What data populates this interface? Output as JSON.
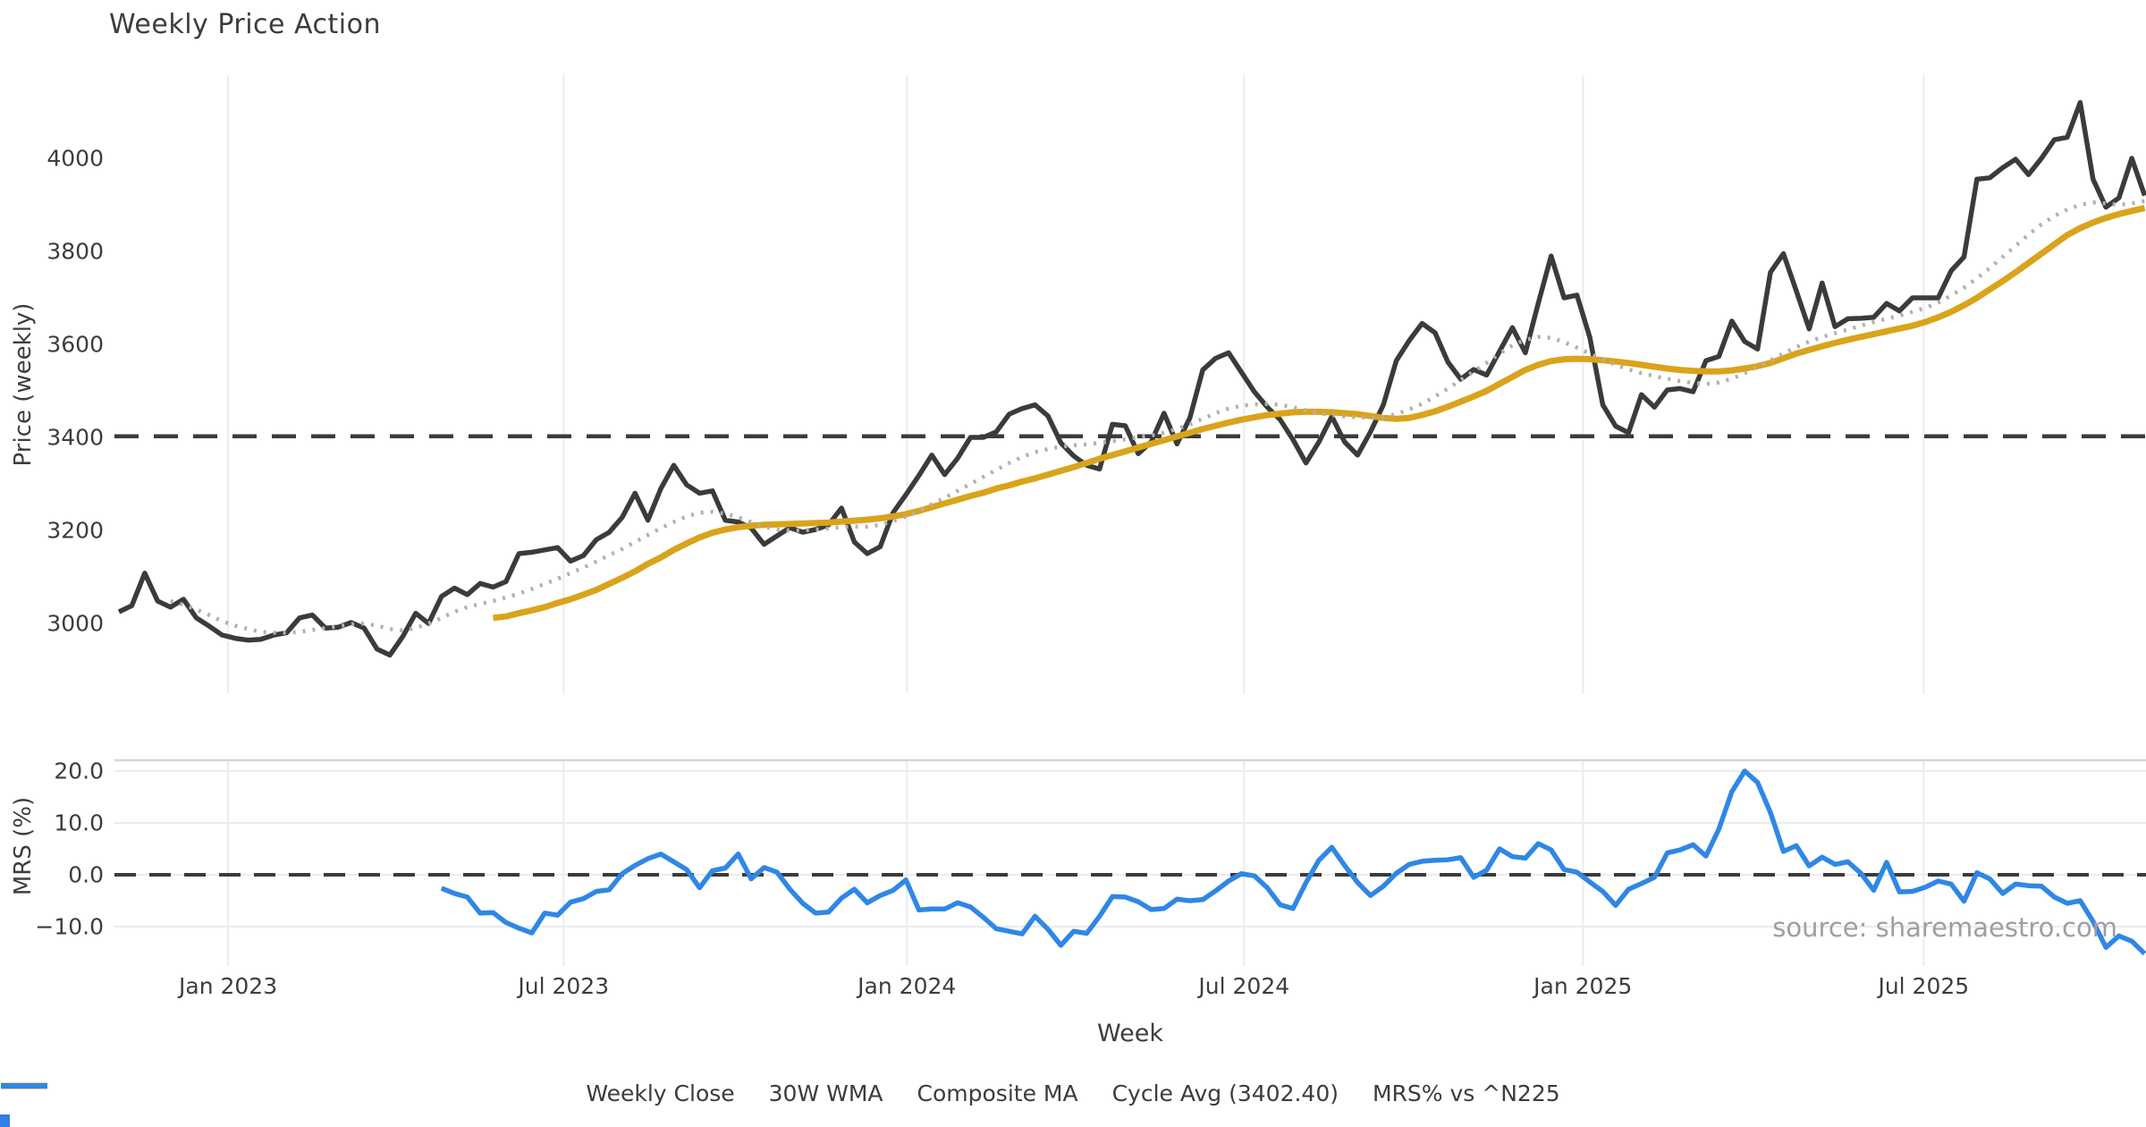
{
  "title": "Weekly Price Action",
  "source": "source: sharemaestro.com",
  "colors": {
    "weekly_close": "#3b3b3b",
    "wma_30w": "#d9a41b",
    "composite_ma": "#b0b0b0",
    "cycle_avg": "#3b3b3b",
    "mrs": "#2f87e5",
    "gridline": "#ebebf1",
    "panel_border": "#d5d5da",
    "tick_text": "#3d3d3d",
    "source_text": "#9e9ea4",
    "corner_artifact": "#2f7fe8"
  },
  "price_panel": {
    "y_label": "Price (weekly)",
    "y_ticks": [
      "3000",
      "3200",
      "3400",
      "3600",
      "3800",
      "4000"
    ],
    "cycle_avg_value": 3402.4
  },
  "mrs_panel": {
    "y_label": "MRS (%)",
    "y_ticks": [
      "20.0",
      "10.0",
      "0.0",
      "−10.0"
    ],
    "zero_line": 0
  },
  "x_axis": {
    "label": "Week",
    "ticks": [
      "Jan 2023",
      "Jul 2023",
      "Jan 2024",
      "Jul 2024",
      "Jan 2025",
      "Jul 2025"
    ],
    "tick_weeks": [
      8.46,
      34.46,
      61.07,
      87.2,
      113.46,
      139.87
    ]
  },
  "legend": [
    {
      "label": "Weekly Close",
      "color": "#3b3b3b",
      "style": "solid",
      "width": 6
    },
    {
      "label": "30W WMA",
      "color": "#d9a41b",
      "style": "solid",
      "width": 7
    },
    {
      "label": "Composite MA",
      "color": "#b0b0b0",
      "style": "dotted",
      "width": 4.5
    },
    {
      "label": "Cycle Avg (3402.40)",
      "color": "#3b3b3b",
      "style": "dashed",
      "width": 4.5
    },
    {
      "label": "MRS% vs ^N225",
      "color": "#2f87e5",
      "style": "solid",
      "width": 6
    }
  ],
  "chart_data": [
    {
      "type": "line",
      "panel": "price",
      "title": "Weekly Price Action",
      "xlabel": "Week",
      "ylabel": "Price (weekly)",
      "x_unit": "weekly samples (week index 0 ≈ early Nov 2022)",
      "x_tick_labels": [
        "Jan 2023",
        "Jul 2023",
        "Jan 2024",
        "Jul 2024",
        "Jan 2025",
        "Jul 2025"
      ],
      "x_tick_weeks": [
        8.46,
        34.46,
        61.07,
        87.2,
        113.46,
        139.87
      ],
      "ylim": [
        2850,
        4180
      ],
      "grid": "vertical only",
      "legend_position": "bottom center",
      "reference_line": {
        "name": "Cycle Avg",
        "value": 3402.4,
        "style": "dashed",
        "color": "#3b3b3b"
      },
      "series": [
        {
          "name": "Weekly Close",
          "color": "#3b3b3b",
          "style": "solid",
          "start_week": 0,
          "values": [
            3025,
            3038,
            3108,
            3048,
            3035,
            3052,
            3012,
            2994,
            2975,
            2968,
            2964,
            2966,
            2975,
            2980,
            3012,
            3018,
            2990,
            2992,
            3002,
            2990,
            2945,
            2932,
            2972,
            3022,
            3000,
            3058,
            3076,
            3062,
            3086,
            3078,
            3090,
            3150,
            3153,
            3158,
            3163,
            3134,
            3146,
            3180,
            3196,
            3228,
            3280,
            3222,
            3290,
            3340,
            3298,
            3280,
            3285,
            3222,
            3218,
            3205,
            3170,
            3188,
            3206,
            3196,
            3202,
            3212,
            3248,
            3175,
            3150,
            3165,
            3238,
            3277,
            3318,
            3362,
            3320,
            3355,
            3400,
            3400,
            3412,
            3450,
            3462,
            3470,
            3446,
            3388,
            3360,
            3340,
            3332,
            3428,
            3425,
            3365,
            3390,
            3452,
            3386,
            3442,
            3545,
            3570,
            3582,
            3540,
            3498,
            3465,
            3438,
            3395,
            3345,
            3390,
            3445,
            3390,
            3362,
            3412,
            3470,
            3565,
            3608,
            3645,
            3625,
            3562,
            3525,
            3546,
            3534,
            3585,
            3636,
            3582,
            3688,
            3790,
            3700,
            3706,
            3615,
            3470,
            3424,
            3410,
            3492,
            3465,
            3502,
            3505,
            3498,
            3565,
            3574,
            3650,
            3606,
            3590,
            3755,
            3795,
            3715,
            3633,
            3732,
            3638,
            3655,
            3656,
            3658,
            3688,
            3672,
            3700,
            3700,
            3700,
            3758,
            3788,
            3955,
            3958,
            3980,
            3998,
            3965,
            4000,
            4040,
            4045,
            4120,
            3955,
            3895,
            3915,
            4000,
            3920
          ]
        },
        {
          "name": "30W WMA",
          "color": "#d9a41b",
          "style": "solid",
          "start_week": 29,
          "values": [
            3012,
            3015,
            3022,
            3028,
            3035,
            3044,
            3052,
            3062,
            3072,
            3085,
            3098,
            3112,
            3128,
            3142,
            3158,
            3172,
            3185,
            3195,
            3202,
            3207,
            3210,
            3212,
            3213,
            3214,
            3215,
            3216,
            3217,
            3219,
            3221,
            3223,
            3226,
            3230,
            3235,
            3242,
            3250,
            3258,
            3266,
            3274,
            3281,
            3290,
            3297,
            3305,
            3312,
            3320,
            3328,
            3336,
            3345,
            3354,
            3362,
            3370,
            3378,
            3386,
            3394,
            3402,
            3410,
            3418,
            3425,
            3432,
            3438,
            3443,
            3448,
            3451,
            3454,
            3455,
            3455,
            3454,
            3452,
            3450,
            3446,
            3442,
            3440,
            3442,
            3448,
            3456,
            3466,
            3477,
            3488,
            3500,
            3515,
            3530,
            3545,
            3556,
            3564,
            3568,
            3569,
            3568,
            3566,
            3563,
            3560,
            3556,
            3552,
            3548,
            3545,
            3543,
            3542,
            3542,
            3544,
            3548,
            3553,
            3560,
            3570,
            3580,
            3588,
            3596,
            3603,
            3610,
            3616,
            3622,
            3628,
            3634,
            3640,
            3648,
            3658,
            3670,
            3684,
            3700,
            3718,
            3736,
            3755,
            3775,
            3795,
            3815,
            3835,
            3850,
            3862,
            3872,
            3880,
            3887,
            3893
          ]
        },
        {
          "name": "Composite MA",
          "color": "#b0b0b0",
          "style": "dotted",
          "start_week": 4,
          "values": [
            3048,
            3040,
            3030,
            3018,
            3005,
            2995,
            2988,
            2982,
            2980,
            2980,
            2982,
            2986,
            2990,
            2994,
            2998,
            3000,
            2995,
            2988,
            2985,
            2990,
            3000,
            3012,
            3025,
            3035,
            3042,
            3048,
            3056,
            3064,
            3074,
            3085,
            3096,
            3108,
            3120,
            3133,
            3147,
            3160,
            3175,
            3190,
            3205,
            3218,
            3230,
            3238,
            3240,
            3236,
            3228,
            3218,
            3208,
            3202,
            3200,
            3200,
            3202,
            3204,
            3207,
            3208,
            3208,
            3212,
            3220,
            3230,
            3242,
            3256,
            3270,
            3285,
            3300,
            3315,
            3330,
            3345,
            3358,
            3368,
            3375,
            3380,
            3383,
            3385,
            3388,
            3392,
            3396,
            3400,
            3404,
            3410,
            3418,
            3428,
            3440,
            3452,
            3462,
            3468,
            3471,
            3472,
            3470,
            3465,
            3458,
            3452,
            3448,
            3445,
            3443,
            3442,
            3444,
            3450,
            3460,
            3472,
            3488,
            3505,
            3523,
            3542,
            3560,
            3580,
            3598,
            3610,
            3616,
            3614,
            3605,
            3593,
            3580,
            3568,
            3556,
            3546,
            3538,
            3532,
            3526,
            3521,
            3517,
            3515,
            3518,
            3526,
            3538,
            3552,
            3566,
            3580,
            3594,
            3606,
            3616,
            3624,
            3632,
            3640,
            3648,
            3655,
            3662,
            3670,
            3678,
            3690,
            3705,
            3722,
            3742,
            3764,
            3788,
            3812,
            3836,
            3858,
            3876,
            3890,
            3900,
            3905,
            3903,
            3900,
            3903,
            3908
          ]
        }
      ]
    },
    {
      "type": "line",
      "panel": "mrs",
      "ylabel": "MRS (%)",
      "y_tick_values": [
        20.0,
        10.0,
        0.0,
        -10.0
      ],
      "ylim": [
        -17.5,
        22
      ],
      "grid": "horizontal and vertical",
      "reference_line": {
        "name": "zero line",
        "value": 0,
        "style": "dashed",
        "color": "#3b3b3b"
      },
      "series": [
        {
          "name": "MRS% vs ^N225",
          "color": "#2f87e5",
          "style": "solid",
          "start_week": 25,
          "values": [
            -2.6,
            -3.6,
            -4.3,
            -7.4,
            -7.3,
            -9.2,
            -10.3,
            -11.2,
            -7.4,
            -7.8,
            -5.3,
            -4.6,
            -3.2,
            -2.9,
            0.2,
            1.8,
            3.1,
            4.0,
            2.5,
            1.0,
            -2.5,
            0.8,
            1.3,
            4.0,
            -0.8,
            1.4,
            0.5,
            -2.8,
            -5.5,
            -7.4,
            -7.2,
            -4.5,
            -2.8,
            -5.4,
            -4.0,
            -3.0,
            -1.0,
            -6.8,
            -6.6,
            -6.6,
            -5.4,
            -6.2,
            -8.2,
            -10.4,
            -10.9,
            -11.4,
            -8.0,
            -10.5,
            -13.6,
            -10.9,
            -11.3,
            -8.0,
            -4.2,
            -4.3,
            -5.2,
            -6.7,
            -6.5,
            -4.7,
            -5.0,
            -4.8,
            -3.1,
            -1.2,
            0.2,
            -0.2,
            -2.5,
            -5.8,
            -6.5,
            -1.5,
            2.8,
            5.3,
            1.8,
            -1.5,
            -4.0,
            -2.2,
            0.3,
            2.0,
            2.6,
            2.8,
            2.9,
            3.3,
            -0.5,
            0.9,
            5.0,
            3.5,
            3.2,
            6.0,
            4.8,
            1.0,
            0.5,
            -1.4,
            -3.2,
            -5.9,
            -2.8,
            -1.7,
            -0.5,
            4.2,
            4.8,
            5.8,
            3.6,
            8.8,
            16.0,
            20.0,
            17.8,
            12.0,
            4.5,
            5.6,
            1.7,
            3.4,
            2.0,
            2.5,
            0.3,
            -3.0,
            2.4,
            -3.3,
            -3.2,
            -2.4,
            -1.2,
            -1.8,
            -5.1,
            0.4,
            -0.8,
            -3.6,
            -1.8,
            -2.1,
            -2.2,
            -4.3,
            -5.5,
            -5.0,
            -9.0,
            -14.0,
            -11.8,
            -12.8,
            -15.2
          ]
        }
      ]
    }
  ]
}
